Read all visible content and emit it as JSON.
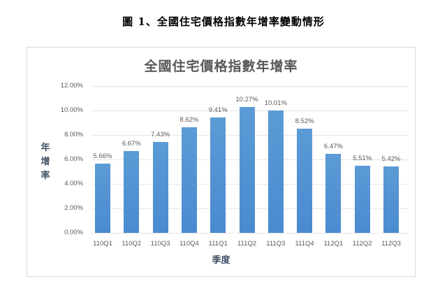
{
  "figure": {
    "caption": "圖 1、全國住宅價格指數年增率變動情形"
  },
  "chart_data": {
    "type": "bar",
    "title": "全國住宅價格指數年增率",
    "xlabel": "季度",
    "ylabel": "年增率",
    "categories": [
      "110Q1",
      "110Q2",
      "110Q3",
      "110Q4",
      "111Q1",
      "111Q2",
      "111Q3",
      "111Q4",
      "112Q1",
      "112Q2",
      "112Q3"
    ],
    "values": [
      5.66,
      6.67,
      7.43,
      8.62,
      9.41,
      10.27,
      10.01,
      8.52,
      6.47,
      5.51,
      5.42
    ],
    "value_labels": [
      "5.66%",
      "6.67%",
      "7.43%",
      "8.62%",
      "9.41%",
      "10.27%",
      "10.01%",
      "8.52%",
      "6.47%",
      "5.51%",
      "5.42%"
    ],
    "ylim": [
      0,
      12
    ],
    "yticks": [
      "0.00%",
      "2.00%",
      "4.00%",
      "6.00%",
      "8.00%",
      "10.00%",
      "12.00%"
    ],
    "grid": true,
    "legend": false,
    "bar_color": "#5b9bd5"
  }
}
